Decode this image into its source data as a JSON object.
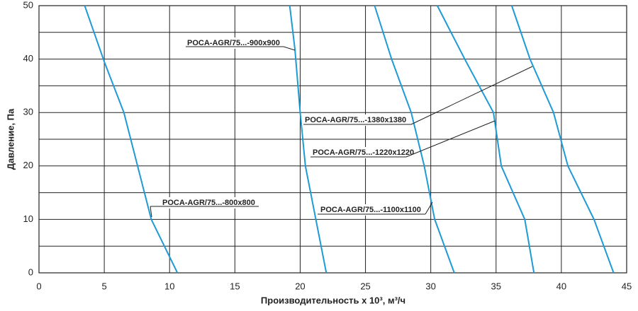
{
  "chart_data": {
    "type": "line",
    "xlabel": "Производительность x 10³, м³/ч",
    "ylabel": "Давление, Па",
    "xlim": [
      0,
      45
    ],
    "xticks": [
      0,
      5,
      10,
      15,
      20,
      25,
      30,
      35,
      40,
      45
    ],
    "ylim": [
      0,
      50
    ],
    "yticks": [
      0,
      10,
      20,
      30,
      40,
      50
    ],
    "ygrid": [
      5,
      15,
      25,
      35,
      45
    ],
    "grid": true,
    "color": "#1e9ad6",
    "series": [
      {
        "x": [
          3.5,
          5.0,
          6.5,
          8.6,
          10.6
        ],
        "values": [
          50,
          39.5,
          30,
          10,
          0
        ]
      },
      {
        "x": [
          19.2,
          19.6,
          20.0,
          20.4,
          22.0
        ],
        "values": [
          50,
          41.8,
          30,
          20,
          0
        ]
      },
      {
        "x": [
          25.7,
          27.0,
          28.5,
          29.5,
          30.3,
          31.8
        ],
        "values": [
          50,
          40,
          30,
          20,
          10,
          0
        ]
      },
      {
        "x": [
          30.5,
          32.6,
          34.8,
          35.4,
          37.2,
          37.9
        ],
        "values": [
          50,
          40,
          30,
          20,
          10,
          0
        ]
      },
      {
        "x": [
          36.2,
          37.6,
          39.4,
          40.5,
          42.5,
          44.0
        ],
        "values": [
          50,
          40,
          30,
          20,
          10,
          0
        ]
      }
    ],
    "annotations": [
      "POCA-AGR/75...-800x800",
      "POCA-AGR/75...-900x900",
      "POCA-AGR/75...-1100x1100",
      "POCA-AGR/75...-1220x1220",
      "POCA-AGR/75...-1380x1380"
    ]
  }
}
